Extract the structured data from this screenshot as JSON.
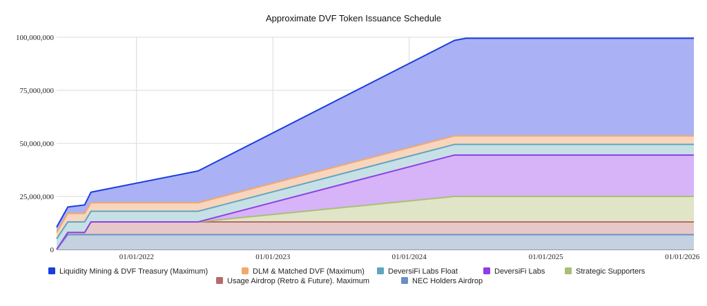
{
  "chart_data": {
    "type": "area",
    "stacked": true,
    "title": "Approximate DVF Token Issuance Schedule",
    "xlabel": "",
    "ylabel": "",
    "x_axis": {
      "type": "date",
      "range": [
        "2021-06-01",
        "2026-02-01"
      ],
      "ticks": [
        "2022-01-01",
        "2023-01-01",
        "2024-01-01",
        "2025-01-01",
        "2026-01-01"
      ],
      "tick_labels": [
        "01/01/2022",
        "01/01/2023",
        "01/01/2024",
        "01/01/2025",
        "01/01/2026"
      ]
    },
    "y_axis": {
      "range": [
        0,
        100000000
      ],
      "ticks": [
        0,
        25000000,
        50000000,
        75000000,
        100000000
      ],
      "tick_labels": [
        "0",
        "25,000,000",
        "50,000,000",
        "75,000,000",
        "100,000,000"
      ]
    },
    "grid": true,
    "legend_position": "bottom",
    "x": [
      "2021-06-01",
      "2021-07-01",
      "2021-08-15",
      "2021-09-01",
      "2022-06-15",
      "2024-05-01",
      "2024-06-01",
      "2026-02-01"
    ],
    "series": [
      {
        "name": "NEC Holders Airdrop",
        "line_color": "#6b8fc4",
        "fill_color": "#c4d1e0",
        "values": [
          0,
          7000000,
          7000000,
          7000000,
          7000000,
          7000000,
          7000000,
          7000000
        ]
      },
      {
        "name": "Usage Airdrop (Retro & Future). Maximum",
        "line_color": "#b56b6b",
        "fill_color": "#e6c8c8",
        "values": [
          0,
          1000000,
          1000000,
          6000000,
          6000000,
          6000000,
          6000000,
          6000000
        ]
      },
      {
        "name": "Strategic Supporters",
        "line_color": "#a9bf78",
        "fill_color": "#dfe5c6",
        "values": [
          0,
          0,
          0,
          0,
          0,
          12000000,
          12000000,
          12000000
        ]
      },
      {
        "name": "DeversiFi Labs",
        "line_color": "#8f3ee8",
        "fill_color": "#d7b3f7",
        "values": [
          0,
          0,
          0,
          0,
          0,
          19500000,
          19500000,
          19500000
        ]
      },
      {
        "name": "DeversiFi Labs Float",
        "line_color": "#5fa5bf",
        "fill_color": "#c7e0e6",
        "values": [
          5000000,
          5000000,
          5000000,
          5000000,
          5000000,
          5000000,
          5000000,
          5000000
        ]
      },
      {
        "name": "DLM & Matched DVF (Maximum)",
        "line_color": "#f2a96b",
        "fill_color": "#f8d5bd",
        "values": [
          3000000,
          4000000,
          4000000,
          4000000,
          4000000,
          4000000,
          4000000,
          4000000
        ]
      },
      {
        "name": "Liquidity Mining & DVF Treasury (Maximum)",
        "line_color": "#1a3de0",
        "fill_color": "#aab1f4",
        "values": [
          2500000,
          3000000,
          4000000,
          5000000,
          15000000,
          45000000,
          46000000,
          46000000
        ]
      }
    ],
    "legend": [
      "Liquidity Mining & DVF Treasury (Maximum)",
      "DLM & Matched DVF (Maximum)",
      "DeversiFi Labs Float",
      "DeversiFi Labs",
      "Strategic Supporters",
      "Usage Airdrop (Retro & Future). Maximum",
      "NEC Holders Airdrop"
    ]
  }
}
